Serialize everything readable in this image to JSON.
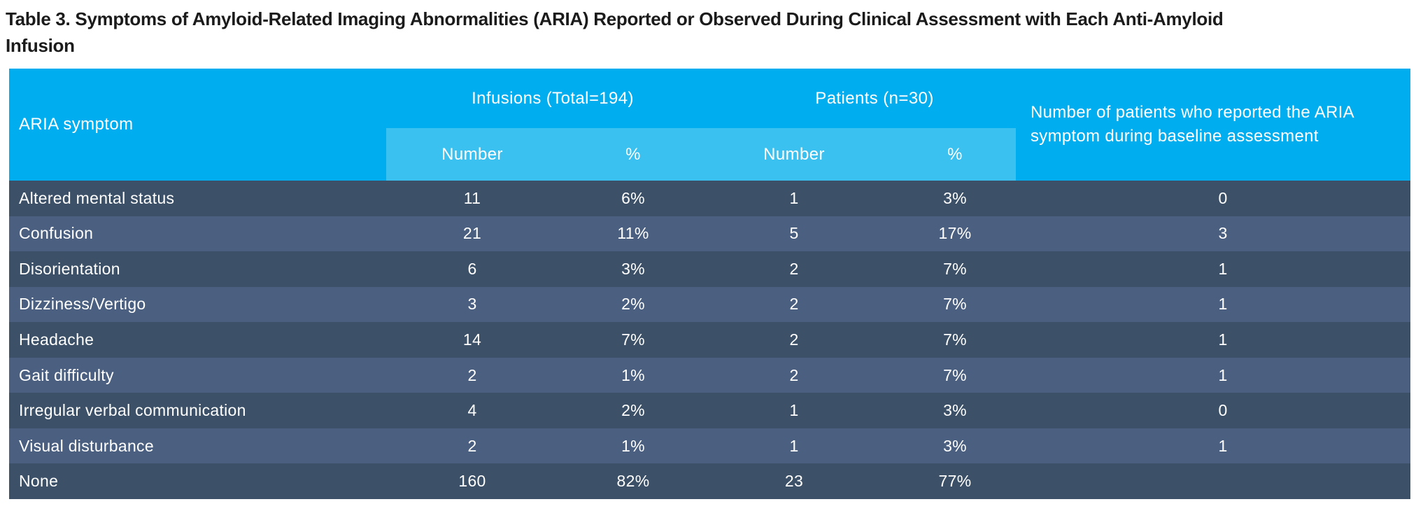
{
  "title": {
    "line1": "Table 3. Symptoms of Amyloid-Related Imaging Abnormalities (ARIA) Reported or Observed During Clinical Assessment with Each Anti-Amyloid",
    "line2": "Infusion"
  },
  "table": {
    "symptom_col_header": "ARIA symptom",
    "group_headers": [
      {
        "label": "Infusions (Total=194)"
      },
      {
        "label": "Patients (n=30)"
      }
    ],
    "sub_headers": [
      "Number",
      "%",
      "Number",
      "%"
    ],
    "last_col_header": "Number of patients who reported the ARIA symptom during baseline assessment",
    "rows": [
      {
        "symptom": "Altered mental status",
        "inf_n": "11",
        "inf_pct": "6%",
        "pat_n": "1",
        "pat_pct": "3%",
        "baseline": "0"
      },
      {
        "symptom": "Confusion",
        "inf_n": "21",
        "inf_pct": "11%",
        "pat_n": "5",
        "pat_pct": "17%",
        "baseline": "3"
      },
      {
        "symptom": "Disorientation",
        "inf_n": "6",
        "inf_pct": "3%",
        "pat_n": "2",
        "pat_pct": "7%",
        "baseline": "1"
      },
      {
        "symptom": "Dizziness/Vertigo",
        "inf_n": "3",
        "inf_pct": "2%",
        "pat_n": "2",
        "pat_pct": "7%",
        "baseline": "1"
      },
      {
        "symptom": "Headache",
        "inf_n": "14",
        "inf_pct": "7%",
        "pat_n": "2",
        "pat_pct": "7%",
        "baseline": "1"
      },
      {
        "symptom": "Gait difficulty",
        "inf_n": "2",
        "inf_pct": "1%",
        "pat_n": "2",
        "pat_pct": "7%",
        "baseline": "1"
      },
      {
        "symptom": "Irregular verbal communication",
        "inf_n": "4",
        "inf_pct": "2%",
        "pat_n": "1",
        "pat_pct": "3%",
        "baseline": "0"
      },
      {
        "symptom": "Visual disturbance",
        "inf_n": "2",
        "inf_pct": "1%",
        "pat_n": "1",
        "pat_pct": "3%",
        "baseline": "1"
      },
      {
        "symptom": "None",
        "inf_n": "160",
        "inf_pct": "82%",
        "pat_n": "23",
        "pat_pct": "77%",
        "baseline": ""
      }
    ]
  },
  "colors": {
    "header_cyan": "#00ADEE",
    "subheader_cyan": "#3BC1EF",
    "row_dark": "#3C5168",
    "row_light": "#4B6080",
    "title_text": "#1b1b1b",
    "table_text": "#ffffff"
  }
}
